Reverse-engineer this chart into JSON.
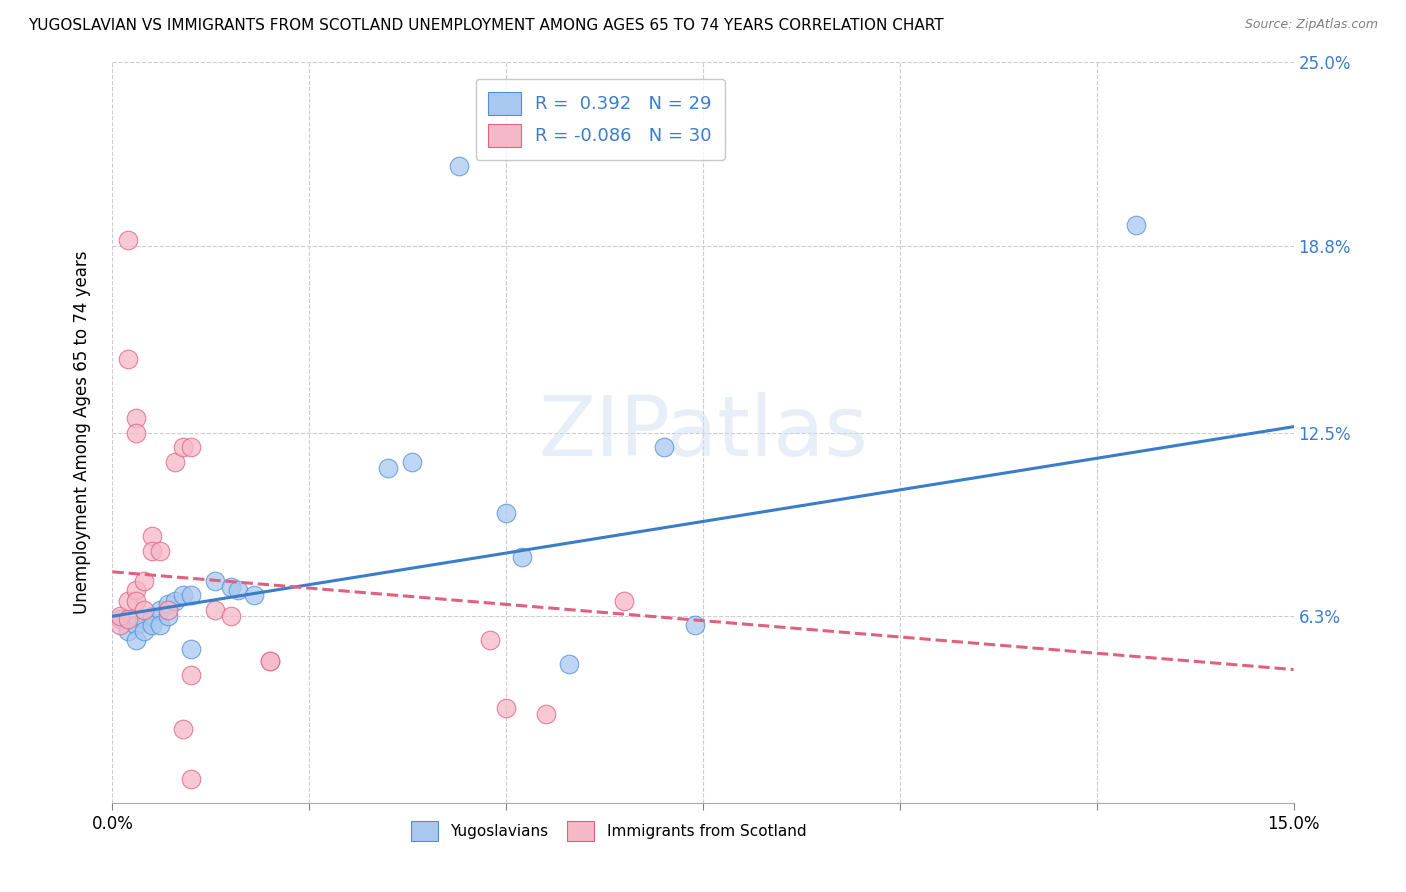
{
  "title": "YUGOSLAVIAN VS IMMIGRANTS FROM SCOTLAND UNEMPLOYMENT AMONG AGES 65 TO 74 YEARS CORRELATION CHART",
  "source": "Source: ZipAtlas.com",
  "ylabel": "Unemployment Among Ages 65 to 74 years",
  "xlim": [
    0.0,
    0.15
  ],
  "ylim": [
    0.0,
    0.25
  ],
  "xticks": [
    0.0,
    0.025,
    0.05,
    0.075,
    0.1,
    0.125,
    0.15
  ],
  "xticklabels_shown": {
    "0.0": "0.0%",
    "0.15": "15.0%"
  },
  "ytick_positions": [
    0.0,
    0.063,
    0.125,
    0.188,
    0.25
  ],
  "yticklabels_right": [
    "",
    "6.3%",
    "12.5%",
    "18.8%",
    "25.0%"
  ],
  "watermark": "ZIPatlas",
  "legend_r1_black": "R = ",
  "legend_r1_blue": " 0.392",
  "legend_r1_black2": "   N = ",
  "legend_r1_blue2": "29",
  "legend_r2_black": "R = ",
  "legend_r2_pink": "-0.086",
  "legend_r2_black2": "   N = ",
  "legend_r2_blue2": "30",
  "blue_color": "#a8c8f0",
  "pink_color": "#f5b8c8",
  "blue_edge_color": "#5090d0",
  "pink_edge_color": "#e06080",
  "blue_line_color": "#3a7dc9",
  "pink_line_color": "#e06080",
  "grid_color": "#cccccc",
  "blue_scatter": [
    [
      0.001,
      0.062
    ],
    [
      0.002,
      0.058
    ],
    [
      0.003,
      0.06
    ],
    [
      0.003,
      0.055
    ],
    [
      0.004,
      0.062
    ],
    [
      0.004,
      0.058
    ],
    [
      0.005,
      0.063
    ],
    [
      0.005,
      0.06
    ],
    [
      0.006,
      0.065
    ],
    [
      0.006,
      0.06
    ],
    [
      0.007,
      0.067
    ],
    [
      0.007,
      0.063
    ],
    [
      0.008,
      0.068
    ],
    [
      0.009,
      0.07
    ],
    [
      0.01,
      0.07
    ],
    [
      0.01,
      0.052
    ],
    [
      0.013,
      0.075
    ],
    [
      0.015,
      0.073
    ],
    [
      0.016,
      0.072
    ],
    [
      0.018,
      0.07
    ],
    [
      0.035,
      0.113
    ],
    [
      0.038,
      0.115
    ],
    [
      0.044,
      0.215
    ],
    [
      0.05,
      0.098
    ],
    [
      0.052,
      0.083
    ],
    [
      0.058,
      0.047
    ],
    [
      0.07,
      0.12
    ],
    [
      0.074,
      0.06
    ],
    [
      0.13,
      0.195
    ]
  ],
  "pink_scatter": [
    [
      0.001,
      0.06
    ],
    [
      0.001,
      0.063
    ],
    [
      0.002,
      0.062
    ],
    [
      0.002,
      0.068
    ],
    [
      0.003,
      0.072
    ],
    [
      0.003,
      0.068
    ],
    [
      0.004,
      0.075
    ],
    [
      0.004,
      0.065
    ],
    [
      0.005,
      0.09
    ],
    [
      0.005,
      0.085
    ],
    [
      0.006,
      0.085
    ],
    [
      0.007,
      0.065
    ],
    [
      0.008,
      0.115
    ],
    [
      0.009,
      0.12
    ],
    [
      0.009,
      0.025
    ],
    [
      0.01,
      0.12
    ],
    [
      0.01,
      0.043
    ],
    [
      0.01,
      0.008
    ],
    [
      0.013,
      0.065
    ],
    [
      0.015,
      0.063
    ],
    [
      0.02,
      0.048
    ],
    [
      0.02,
      0.048
    ],
    [
      0.002,
      0.19
    ],
    [
      0.048,
      0.055
    ],
    [
      0.05,
      0.032
    ],
    [
      0.055,
      0.03
    ],
    [
      0.065,
      0.068
    ],
    [
      0.002,
      0.15
    ],
    [
      0.003,
      0.13
    ],
    [
      0.003,
      0.125
    ]
  ],
  "blue_trendline_x": [
    0.0,
    0.15
  ],
  "blue_trendline_y": [
    0.063,
    0.127
  ],
  "pink_trendline_x": [
    0.0,
    0.15
  ],
  "pink_trendline_y": [
    0.078,
    0.045
  ]
}
